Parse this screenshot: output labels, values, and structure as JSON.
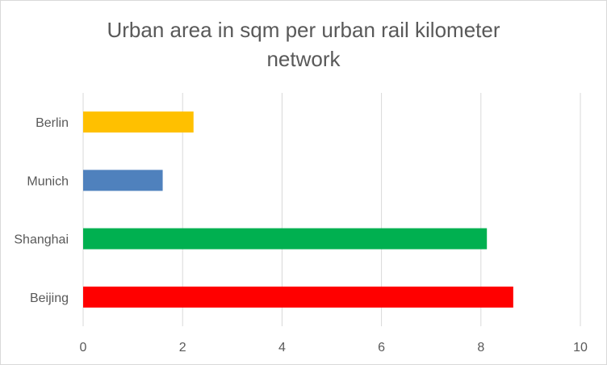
{
  "chart_data": {
    "type": "bar",
    "orientation": "horizontal",
    "title_lines": [
      "Urban area in sqm per urban rail kilometer",
      "network"
    ],
    "categories": [
      "Berlin",
      "Munich",
      "Shanghai",
      "Beijing"
    ],
    "values": [
      2.22,
      1.6,
      8.12,
      8.65
    ],
    "colors": [
      "#FFC000",
      "#4F81BD",
      "#00B050",
      "#FF0000"
    ],
    "xlim": [
      0,
      10
    ],
    "xticks": [
      "0",
      "2",
      "4",
      "6",
      "8",
      "10"
    ],
    "grid": true,
    "legend": "none",
    "gridline_color": "#d9d9d9"
  }
}
